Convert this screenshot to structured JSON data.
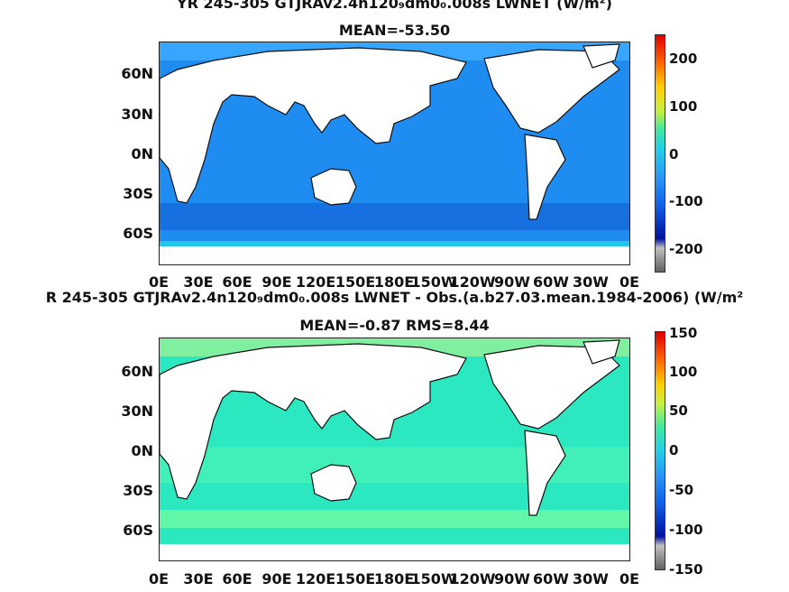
{
  "panel1": {
    "title": "YR 245-305 GTJRAv2.4n120₉dm0₀.008s  LWNET (W/m²)",
    "subtitle": "MEAN=-53.50",
    "lat_labels": [
      "60N",
      "30N",
      "0N",
      "30S",
      "60S"
    ],
    "lon_labels": [
      "0E",
      "30E",
      "60E",
      "90E",
      "120E",
      "150E",
      "180E",
      "150W",
      "120W",
      "90W",
      "60W",
      "30W",
      "0E"
    ],
    "colorbar_labels": [
      "200",
      "100",
      "0",
      "-100",
      "-200"
    ],
    "ocean_color": "#1e8cf0"
  },
  "panel2": {
    "title": "R 245-305 GTJRAv2.4n120₉dm0₀.008s LWNET - Obs.(a.b27.03.mean.1984-2006) (W/m²",
    "subtitle": "MEAN=-0.87 RMS=8.44",
    "lat_labels": [
      "60N",
      "30N",
      "0N",
      "30S",
      "60S"
    ],
    "lon_labels": [
      "0E",
      "30E",
      "60E",
      "90E",
      "120E",
      "150E",
      "180E",
      "150W",
      "120W",
      "90W",
      "60W",
      "30W",
      "0E"
    ],
    "colorbar_labels": [
      "150",
      "100",
      "50",
      "0",
      "-50",
      "-100",
      "-150"
    ],
    "ocean_color": "#2ce8c0"
  }
}
